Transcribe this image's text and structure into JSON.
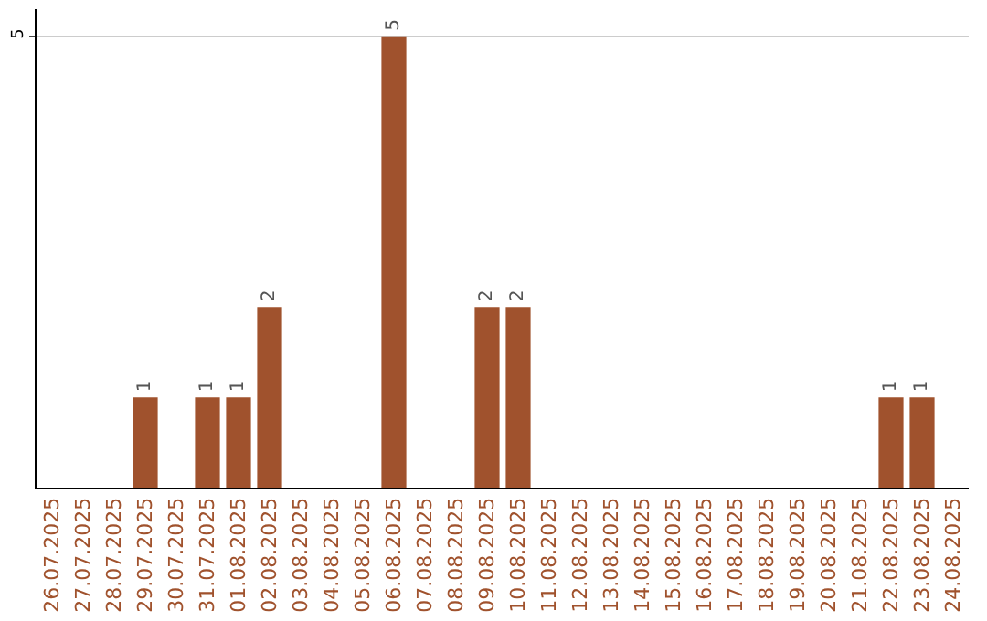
{
  "chart_data": {
    "type": "bar",
    "categories": [
      "26.07.2025",
      "27.07.2025",
      "28.07.2025",
      "29.07.2025",
      "30.07.2025",
      "31.07.2025",
      "01.08.2025",
      "02.08.2025",
      "03.08.2025",
      "04.08.2025",
      "05.08.2025",
      "06.08.2025",
      "07.08.2025",
      "08.08.2025",
      "09.08.2025",
      "10.08.2025",
      "11.08.2025",
      "12.08.2025",
      "13.08.2025",
      "14.08.2025",
      "15.08.2025",
      "16.08.2025",
      "17.08.2025",
      "18.08.2025",
      "19.08.2025",
      "20.08.2025",
      "21.08.2025",
      "22.08.2025",
      "23.08.2025",
      "24.08.2025"
    ],
    "values": [
      0,
      0,
      0,
      1,
      0,
      1,
      1,
      2,
      0,
      0,
      0,
      5,
      0,
      0,
      2,
      2,
      0,
      0,
      0,
      0,
      0,
      0,
      0,
      0,
      0,
      0,
      0,
      1,
      1,
      0
    ],
    "value_labels": [
      null,
      null,
      null,
      "1",
      null,
      "1",
      "1",
      "2",
      null,
      null,
      null,
      "5",
      null,
      null,
      "2",
      "2",
      null,
      null,
      null,
      null,
      null,
      null,
      null,
      null,
      null,
      null,
      null,
      "1",
      "1",
      null
    ],
    "color": "#a0522d",
    "ylim": [
      0,
      5.3
    ],
    "yticks": [
      5
    ],
    "grid": "y",
    "legend": false
  }
}
